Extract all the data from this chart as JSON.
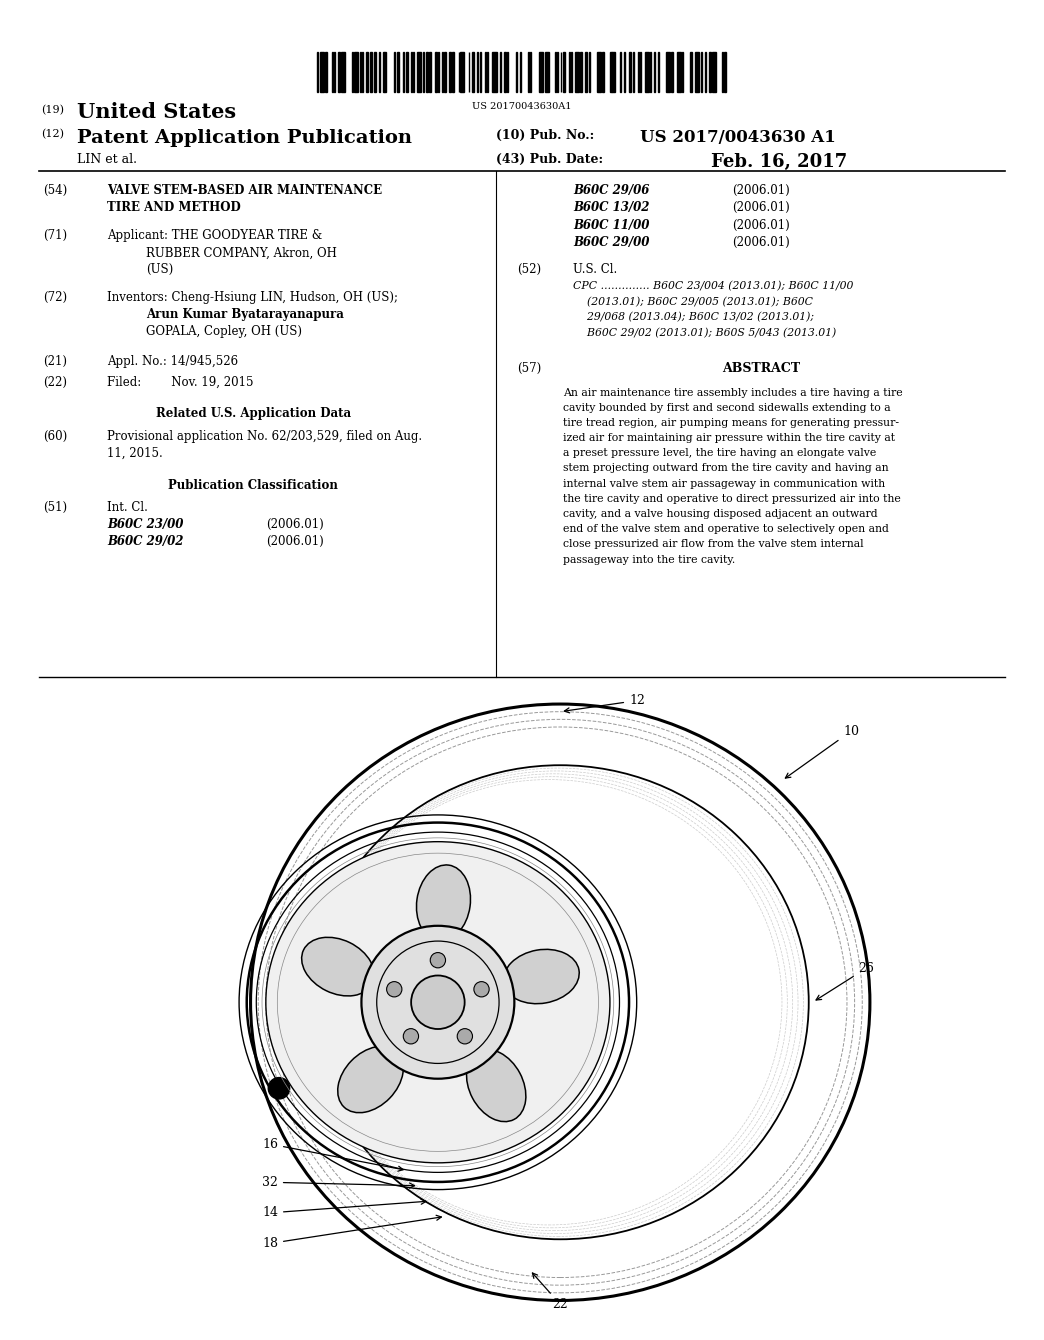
{
  "background_color": "#ffffff",
  "barcode_text": "US 20170043630A1",
  "header": {
    "country_label": "(19)",
    "country": "United States",
    "type_label": "(12)",
    "type": "Patent Application Publication",
    "pub_no_label": "(10) Pub. No.:",
    "pub_no": "US 2017/0043630 A1",
    "inventor_label": "LIN et al.",
    "pub_date_label": "(43) Pub. Date:",
    "pub_date": "Feb. 16, 2017"
  },
  "left_column": {
    "title_label": "(54)",
    "title_line1": "VALVE STEM-BASED AIR MAINTENANCE",
    "title_line2": "TIRE AND METHOD",
    "applicant_label": "(71)",
    "applicant_prefix": "Applicant:",
    "applicant_line1": "THE GOODYEAR TIRE &",
    "applicant_line2": "RUBBER COMPANY, Akron, OH",
    "applicant_line3": "(US)",
    "inventors_label": "(72)",
    "inventors_prefix": "Inventors:",
    "inventor1_line1": "Cheng-Hsiung LIN, Hudson, OH (US);",
    "inventor1_line2": "Arun Kumar Byatarayanapura",
    "inventor1_line3": "GOPALA, Copley, OH (US)",
    "appl_no_label": "(21)",
    "appl_no_text": "Appl. No.: 14/945,526",
    "filed_label": "(22)",
    "filed_text": "Filed:",
    "filed_date": "Nov. 19, 2015",
    "related_header": "Related U.S. Application Data",
    "provisional_label": "(60)",
    "provisional_line1": "Provisional application No. 62/203,529, filed on Aug.",
    "provisional_line2": "11, 2015.",
    "pub_class_header": "Publication Classification",
    "int_cl_label": "(51)",
    "int_cl_title": "Int. Cl.",
    "int_cl1_code": "B60C 23/00",
    "int_cl1_date": "(2006.01)",
    "int_cl2_code": "B60C 29/02",
    "int_cl2_date": "(2006.01)"
  },
  "right_column": {
    "int_cl3_code": "B60C 29/06",
    "int_cl3_date": "(2006.01)",
    "int_cl4_code": "B60C 13/02",
    "int_cl4_date": "(2006.01)",
    "int_cl5_code": "B60C 11/00",
    "int_cl5_date": "(2006.01)",
    "int_cl6_code": "B60C 29/00",
    "int_cl6_date": "(2006.01)",
    "us_cl_label": "(52)",
    "us_cl_title": "U.S. Cl.",
    "cpc_line1": "CPC .............. B60C 23/004 (2013.01); B60C 11/00",
    "cpc_line2": "    (2013.01); B60C 29/005 (2013.01); B60C",
    "cpc_line3": "    29/068 (2013.04); B60C 13/02 (2013.01);",
    "cpc_line4": "    B60C 29/02 (2013.01); B60S 5/043 (2013.01)",
    "abstract_label": "(57)",
    "abstract_title": "ABSTRACT",
    "abs_lines": [
      "An air maintenance tire assembly includes a tire having a tire",
      "cavity bounded by first and second sidewalls extending to a",
      "tire tread region, air pumping means for generating pressur-",
      "ized air for maintaining air pressure within the tire cavity at",
      "a preset pressure level, the tire having an elongate valve",
      "stem projecting outward from the tire cavity and having an",
      "internal valve stem air passageway in communication with",
      "the tire cavity and operative to direct pressurized air into the",
      "cavity, and a valve housing disposed adjacent an outward",
      "end of the valve stem and operative to selectively open and",
      "close pressurized air flow from the valve stem internal",
      "passageway into the tire cavity."
    ]
  }
}
